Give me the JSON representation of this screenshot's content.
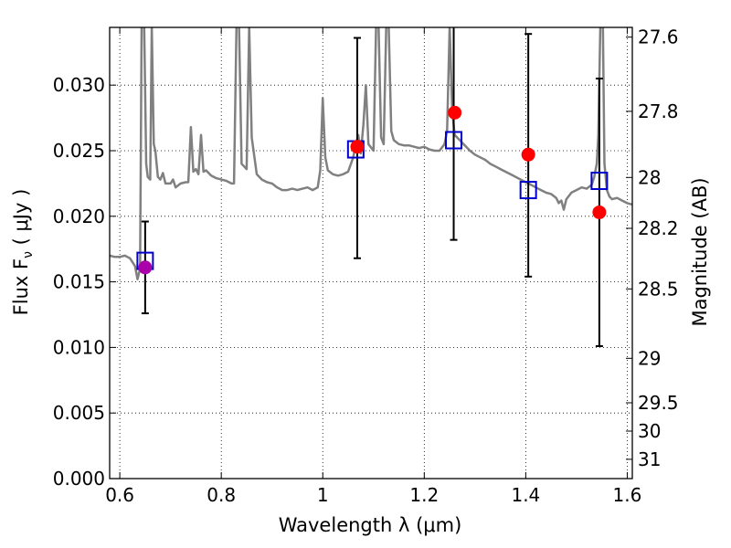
{
  "chart_data": {
    "type": "scatter",
    "title": "",
    "xlabel": "Wavelength  λ (μm)",
    "ylabel": "Flux  F",
    "ylabel_sub": "ν",
    "ylabel_unit": " ( μJy )",
    "y2label": "Magnitude (AB)",
    "xlim": [
      0.58,
      1.61
    ],
    "ylim": [
      0.0,
      0.0344
    ],
    "grid": true,
    "x_ticks": [
      {
        "value": 0.6,
        "label": "0.6"
      },
      {
        "value": 0.8,
        "label": "0.8"
      },
      {
        "value": 1.0,
        "label": "1"
      },
      {
        "value": 1.2,
        "label": "1.2"
      },
      {
        "value": 1.4,
        "label": "1.4"
      },
      {
        "value": 1.6,
        "label": "1.6"
      }
    ],
    "y_ticks": [
      {
        "value": 0.0,
        "label": "0.000"
      },
      {
        "value": 0.005,
        "label": "0.005"
      },
      {
        "value": 0.01,
        "label": "0.010"
      },
      {
        "value": 0.015,
        "label": "0.015"
      },
      {
        "value": 0.02,
        "label": "0.020"
      },
      {
        "value": 0.025,
        "label": "0.025"
      },
      {
        "value": 0.03,
        "label": "0.030"
      }
    ],
    "y2_ticks": [
      {
        "label": "27.6",
        "flux": 0.03366
      },
      {
        "label": "27.8",
        "flux": 0.028
      },
      {
        "label": "28",
        "flux": 0.02296
      },
      {
        "label": "28.2",
        "flux": 0.01908
      },
      {
        "label": "28.5",
        "flux": 0.01446
      },
      {
        "label": "29",
        "flux": 0.00917
      },
      {
        "label": "29.5",
        "flux": 0.00578
      },
      {
        "label": "30",
        "flux": 0.00362
      },
      {
        "label": "31",
        "flux": 0.00147
      }
    ],
    "series": [
      {
        "type": "line",
        "color": "#808080",
        "points": [
          [
            0.58,
            0.017
          ],
          [
            0.59,
            0.0169
          ],
          [
            0.6,
            0.0169
          ],
          [
            0.61,
            0.017
          ],
          [
            0.615,
            0.0169
          ],
          [
            0.62,
            0.0168
          ],
          [
            0.63,
            0.0162
          ],
          [
            0.635,
            0.0152
          ],
          [
            0.64,
            0.016
          ],
          [
            0.643,
            0.0345
          ],
          [
            0.648,
            0.0345
          ],
          [
            0.652,
            0.024
          ],
          [
            0.655,
            0.023
          ],
          [
            0.66,
            0.0228
          ],
          [
            0.663,
            0.0345
          ],
          [
            0.667,
            0.0255
          ],
          [
            0.67,
            0.025
          ],
          [
            0.675,
            0.023
          ],
          [
            0.68,
            0.0228
          ],
          [
            0.685,
            0.0233
          ],
          [
            0.69,
            0.0225
          ],
          [
            0.7,
            0.0225
          ],
          [
            0.705,
            0.0228
          ],
          [
            0.71,
            0.0222
          ],
          [
            0.72,
            0.0225
          ],
          [
            0.73,
            0.0226
          ],
          [
            0.735,
            0.0226
          ],
          [
            0.74,
            0.0268
          ],
          [
            0.745,
            0.0234
          ],
          [
            0.75,
            0.0236
          ],
          [
            0.755,
            0.0232
          ],
          [
            0.76,
            0.0262
          ],
          [
            0.765,
            0.0234
          ],
          [
            0.77,
            0.0235
          ],
          [
            0.78,
            0.0231
          ],
          [
            0.79,
            0.0229
          ],
          [
            0.8,
            0.0228
          ],
          [
            0.81,
            0.0227
          ],
          [
            0.82,
            0.0225
          ],
          [
            0.825,
            0.0225
          ],
          [
            0.83,
            0.0345
          ],
          [
            0.835,
            0.0345
          ],
          [
            0.84,
            0.024
          ],
          [
            0.85,
            0.0236
          ],
          [
            0.855,
            0.0345
          ],
          [
            0.86,
            0.026
          ],
          [
            0.87,
            0.0232
          ],
          [
            0.88,
            0.0228
          ],
          [
            0.89,
            0.0226
          ],
          [
            0.9,
            0.0225
          ],
          [
            0.91,
            0.0222
          ],
          [
            0.92,
            0.022
          ],
          [
            0.93,
            0.022
          ],
          [
            0.94,
            0.0221
          ],
          [
            0.95,
            0.022
          ],
          [
            0.96,
            0.0221
          ],
          [
            0.97,
            0.0222
          ],
          [
            0.98,
            0.022
          ],
          [
            0.99,
            0.0222
          ],
          [
            0.995,
            0.0235
          ],
          [
            1.0,
            0.029
          ],
          [
            1.005,
            0.0245
          ],
          [
            1.01,
            0.0235
          ],
          [
            1.02,
            0.0232
          ],
          [
            1.03,
            0.0231
          ],
          [
            1.04,
            0.0232
          ],
          [
            1.05,
            0.0234
          ],
          [
            1.06,
            0.0245
          ],
          [
            1.065,
            0.0255
          ],
          [
            1.07,
            0.0262
          ],
          [
            1.075,
            0.0248
          ],
          [
            1.08,
            0.027
          ],
          [
            1.085,
            0.03
          ],
          [
            1.09,
            0.0255
          ],
          [
            1.1,
            0.025
          ],
          [
            1.105,
            0.0345
          ],
          [
            1.11,
            0.0345
          ],
          [
            1.115,
            0.026
          ],
          [
            1.12,
            0.0255
          ],
          [
            1.125,
            0.0345
          ],
          [
            1.13,
            0.0345
          ],
          [
            1.135,
            0.0265
          ],
          [
            1.14,
            0.0258
          ],
          [
            1.15,
            0.0255
          ],
          [
            1.16,
            0.0254
          ],
          [
            1.17,
            0.0254
          ],
          [
            1.18,
            0.0253
          ],
          [
            1.19,
            0.0252
          ],
          [
            1.2,
            0.0253
          ],
          [
            1.21,
            0.0251
          ],
          [
            1.22,
            0.025
          ],
          [
            1.23,
            0.025
          ],
          [
            1.24,
            0.0255
          ],
          [
            1.245,
            0.0265
          ],
          [
            1.25,
            0.0345
          ],
          [
            1.255,
            0.028
          ],
          [
            1.26,
            0.0262
          ],
          [
            1.27,
            0.0258
          ],
          [
            1.28,
            0.0254
          ],
          [
            1.29,
            0.025
          ],
          [
            1.3,
            0.0247
          ],
          [
            1.31,
            0.0245
          ],
          [
            1.32,
            0.0243
          ],
          [
            1.33,
            0.024
          ],
          [
            1.34,
            0.0238
          ],
          [
            1.35,
            0.0236
          ],
          [
            1.36,
            0.0234
          ],
          [
            1.37,
            0.0232
          ],
          [
            1.38,
            0.023
          ],
          [
            1.39,
            0.0228
          ],
          [
            1.4,
            0.0226
          ],
          [
            1.41,
            0.0224
          ],
          [
            1.42,
            0.0222
          ],
          [
            1.43,
            0.022
          ],
          [
            1.44,
            0.0218
          ],
          [
            1.45,
            0.0217
          ],
          [
            1.46,
            0.0214
          ],
          [
            1.465,
            0.021
          ],
          [
            1.47,
            0.0212
          ],
          [
            1.475,
            0.0205
          ],
          [
            1.48,
            0.0213
          ],
          [
            1.49,
            0.0218
          ],
          [
            1.5,
            0.022
          ],
          [
            1.51,
            0.0222
          ],
          [
            1.52,
            0.0221
          ],
          [
            1.53,
            0.0224
          ],
          [
            1.535,
            0.023
          ],
          [
            1.54,
            0.024
          ],
          [
            1.543,
            0.0262
          ],
          [
            1.547,
            0.0345
          ],
          [
            1.552,
            0.0345
          ],
          [
            1.555,
            0.024
          ],
          [
            1.56,
            0.022
          ],
          [
            1.565,
            0.0215
          ],
          [
            1.57,
            0.0213
          ],
          [
            1.58,
            0.0214
          ],
          [
            1.59,
            0.0212
          ],
          [
            1.6,
            0.021
          ],
          [
            1.61,
            0.0209
          ]
        ]
      },
      {
        "type": "errorbar",
        "color": "#000000",
        "points": [
          {
            "x": 0.65,
            "low": 0.0126,
            "high": 0.0196
          },
          {
            "x": 1.068,
            "low": 0.0168,
            "high": 0.0336
          },
          {
            "x": 1.258,
            "low": 0.0182,
            "high": 0.035
          },
          {
            "x": 1.405,
            "low": 0.0154,
            "high": 0.0339
          },
          {
            "x": 1.545,
            "low": 0.0101,
            "high": 0.0305
          }
        ]
      },
      {
        "type": "scatter",
        "marker": "square-open",
        "color": "#0000cc",
        "x": [
          0.65,
          1.065,
          1.258,
          1.405,
          1.545
        ],
        "y": [
          0.0166,
          0.0251,
          0.0258,
          0.022,
          0.0227
        ]
      },
      {
        "type": "scatter",
        "marker": "circle",
        "color": "#ff0000",
        "x": [
          1.068,
          1.26,
          1.405,
          1.545
        ],
        "y": [
          0.0253,
          0.0279,
          0.0247,
          0.0203
        ]
      },
      {
        "type": "scatter",
        "marker": "circle",
        "color": "#aa00aa",
        "x": [
          0.65
        ],
        "y": [
          0.0161
        ]
      }
    ]
  }
}
